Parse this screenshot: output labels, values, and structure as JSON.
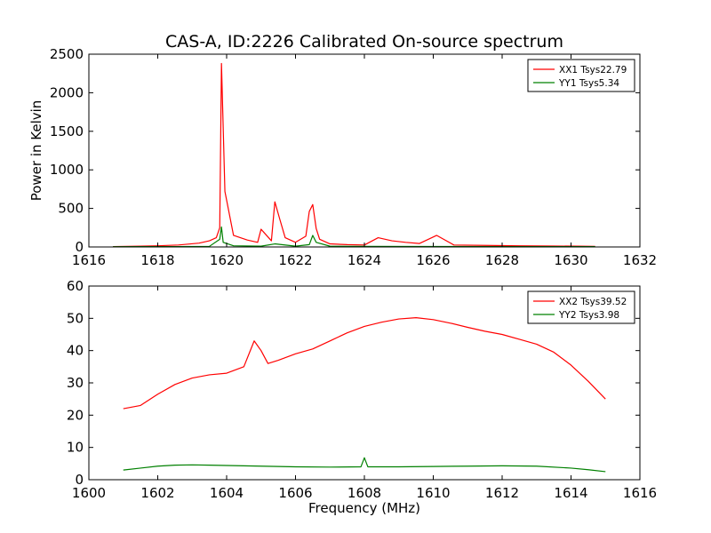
{
  "title": "CAS-A, ID:2226 Calibrated On-source spectrum",
  "xlabel": "Frequency (MHz)",
  "colors": {
    "xx": "#ff0000",
    "yy": "#008000"
  },
  "chart_data": [
    {
      "type": "line",
      "ylabel": "Power in Kelvin",
      "xlim": [
        1616,
        1632
      ],
      "ylim": [
        0,
        2500
      ],
      "xticks": [
        1616,
        1618,
        1620,
        1622,
        1624,
        1626,
        1628,
        1630,
        1632
      ],
      "yticks": [
        0,
        500,
        1000,
        1500,
        2000,
        2500
      ],
      "legend_position": "top-right",
      "series": [
        {
          "name": "XX1 Tsys22.79",
          "color": "#ff0000",
          "x": [
            1616.7,
            1617.5,
            1618.0,
            1618.6,
            1619.2,
            1619.5,
            1619.7,
            1619.8,
            1619.85,
            1619.95,
            1620.2,
            1620.6,
            1620.9,
            1621.0,
            1621.3,
            1621.4,
            1621.55,
            1621.7,
            1622.0,
            1622.3,
            1622.4,
            1622.5,
            1622.6,
            1622.7,
            1623.0,
            1623.5,
            1624.0,
            1624.4,
            1624.8,
            1625.2,
            1625.6,
            1626.1,
            1626.6,
            1627.5,
            1628.5,
            1629.5,
            1630.2,
            1630.7
          ],
          "y": [
            5,
            10,
            15,
            25,
            50,
            80,
            120,
            250,
            2380,
            720,
            150,
            90,
            60,
            230,
            80,
            585,
            350,
            120,
            60,
            140,
            460,
            550,
            240,
            100,
            40,
            30,
            25,
            120,
            80,
            60,
            45,
            150,
            25,
            20,
            15,
            12,
            10,
            8
          ]
        },
        {
          "name": "YY1 Tsys5.34",
          "color": "#008000",
          "x": [
            1616.7,
            1617.5,
            1618.5,
            1619.5,
            1619.8,
            1619.85,
            1619.9,
            1620.2,
            1621.0,
            1621.4,
            1622.0,
            1622.4,
            1622.5,
            1622.6,
            1623.0,
            1624.0,
            1626.0,
            1628.0,
            1630.0,
            1630.7
          ],
          "y": [
            3,
            4,
            5,
            8,
            100,
            260,
            60,
            15,
            10,
            40,
            10,
            30,
            150,
            60,
            10,
            8,
            6,
            5,
            5,
            4
          ]
        }
      ]
    },
    {
      "type": "line",
      "ylabel": "",
      "xlim": [
        1600,
        1616
      ],
      "ylim": [
        0,
        60
      ],
      "xticks": [
        1600,
        1602,
        1604,
        1606,
        1608,
        1610,
        1612,
        1614,
        1616
      ],
      "yticks": [
        0,
        10,
        20,
        30,
        40,
        50,
        60
      ],
      "legend_position": "top-right",
      "series": [
        {
          "name": "XX2 Tsys39.52",
          "color": "#ff0000",
          "x": [
            1601.0,
            1601.5,
            1602.0,
            1602.5,
            1603.0,
            1603.5,
            1604.0,
            1604.5,
            1604.8,
            1605.0,
            1605.2,
            1605.5,
            1606.0,
            1606.5,
            1607.0,
            1607.5,
            1608.0,
            1608.5,
            1609.0,
            1609.5,
            1610.0,
            1610.5,
            1611.0,
            1611.5,
            1612.0,
            1612.5,
            1613.0,
            1613.5,
            1614.0,
            1614.5,
            1615.0
          ],
          "y": [
            22,
            23,
            26.5,
            29.5,
            31.5,
            32.5,
            33,
            35,
            43,
            40,
            36,
            37,
            39,
            40.5,
            43,
            45.5,
            47.5,
            48.8,
            49.8,
            50.2,
            49.6,
            48.5,
            47.2,
            46,
            45,
            43.5,
            42,
            39.5,
            35.5,
            30.5,
            25
          ]
        },
        {
          "name": "YY2 Tsys3.98",
          "color": "#008000",
          "x": [
            1601.0,
            1601.5,
            1602.0,
            1602.5,
            1603.0,
            1603.5,
            1604.0,
            1605.0,
            1606.0,
            1607.0,
            1607.9,
            1608.0,
            1608.1,
            1609.0,
            1610.0,
            1611.0,
            1612.0,
            1613.0,
            1614.0,
            1614.5,
            1615.0
          ],
          "y": [
            3.0,
            3.6,
            4.2,
            4.5,
            4.6,
            4.5,
            4.4,
            4.2,
            4.0,
            3.9,
            4.0,
            6.8,
            4.0,
            4.0,
            4.1,
            4.2,
            4.3,
            4.2,
            3.6,
            3.1,
            2.5
          ]
        }
      ]
    }
  ]
}
